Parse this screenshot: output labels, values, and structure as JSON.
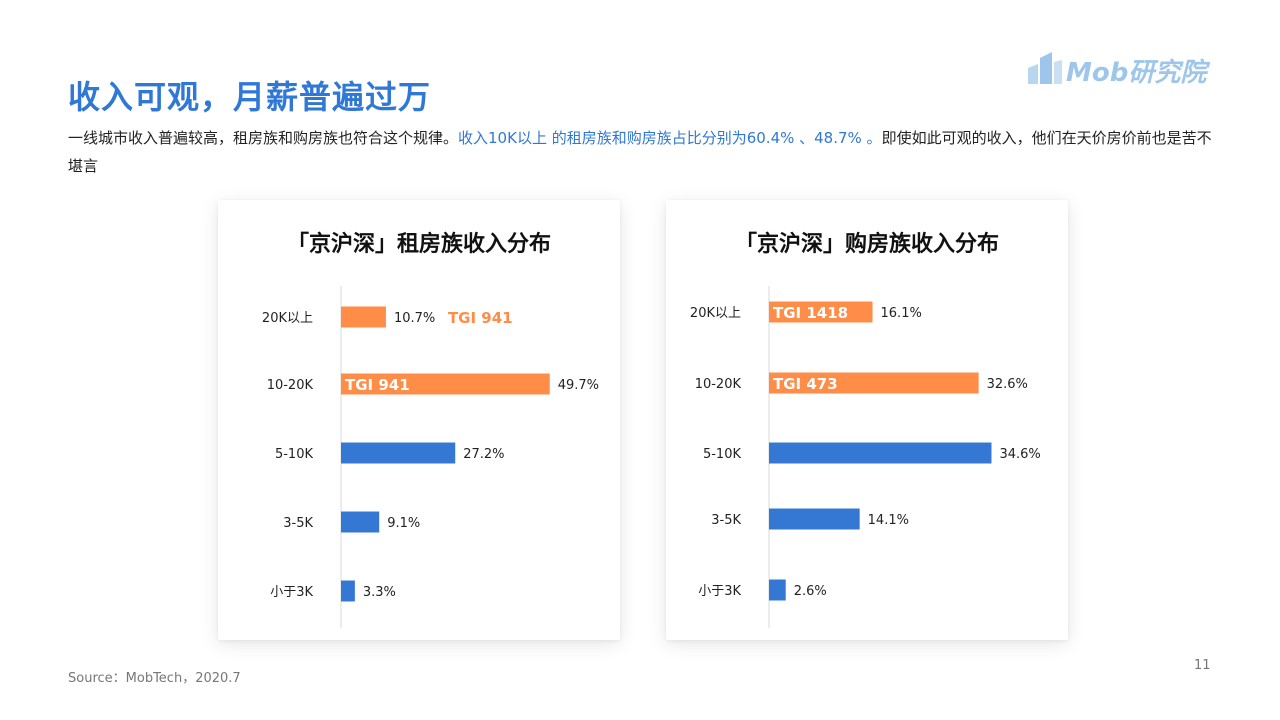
{
  "page": {
    "title": "收入可观，月薪普遍过万",
    "intro_normal_1": "一线城市收入普遍较高，租房族和购房族也符合这个规律。",
    "intro_highlight": "收入10K以上 的租房族和购房族占比分别为60.4% 、48.7% 。",
    "intro_normal_2": "即使如此可观的收入，他们在天价房价前也是苦不堪言",
    "source": "Source：MobTech，2020.7",
    "page_number": "11"
  },
  "logo": {
    "text": "Mob研究院"
  },
  "colors": {
    "accent": "#2f78d6",
    "highlight": "#ff8c47",
    "bar_blue": "#3478d4"
  },
  "chart_data": [
    {
      "type": "bar",
      "orientation": "horizontal",
      "title": "「京沪深」租房族收入分布",
      "categories": [
        "20K以上",
        "10-20K",
        "5-10K",
        "3-5K",
        "小于3K"
      ],
      "values": [
        10.7,
        49.7,
        27.2,
        9.1,
        3.3
      ],
      "value_labels": [
        "10.7%",
        "49.7%",
        "27.2%",
        "9.1%",
        "3.3%"
      ],
      "highlighted": [
        true,
        true,
        false,
        false,
        false
      ],
      "tgi_labels": [
        "TGI 941",
        "TGI 941",
        "",
        "",
        ""
      ],
      "tgi_inside": [
        false,
        true,
        false,
        false,
        false
      ]
    },
    {
      "type": "bar",
      "orientation": "horizontal",
      "title": "「京沪深」购房族收入分布",
      "categories": [
        "20K以上",
        "10-20K",
        "5-10K",
        "3-5K",
        "小于3K"
      ],
      "values": [
        16.1,
        32.6,
        34.6,
        14.1,
        2.6
      ],
      "value_labels": [
        "16.1%",
        "32.6%",
        "34.6%",
        "14.1%",
        "2.6%"
      ],
      "highlighted": [
        true,
        true,
        false,
        false,
        false
      ],
      "tgi_labels": [
        "TGI 1418",
        "TGI 473",
        "",
        "",
        ""
      ],
      "tgi_inside": [
        true,
        true,
        false,
        false,
        false
      ]
    }
  ]
}
